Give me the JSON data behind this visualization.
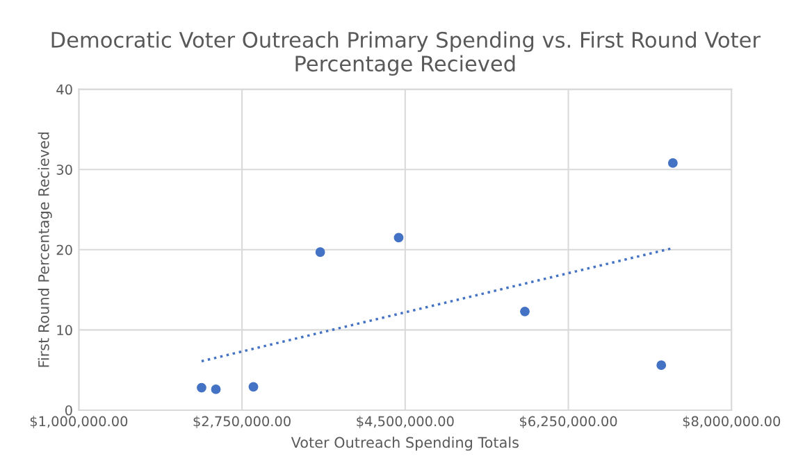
{
  "chart_data": {
    "type": "scatter",
    "title": "Democratic Voter Outreach Primary Spending vs. First Round Voter Percentage Recieved",
    "xlabel": "Voter Outreach Spending Totals",
    "ylabel": "First Round Percentage Recieved",
    "series": [
      {
        "color": "#4472c4",
        "marker": "circle",
        "x": [
          2316600,
          2470000,
          2872500,
          3589300,
          4430500,
          5783700,
          7246600,
          7371000
        ],
        "values": [
          2.8,
          2.6,
          2.9,
          19.7,
          21.5,
          12.3,
          5.6,
          30.8
        ]
      },
      {
        "type": "line",
        "color": "#4472c4",
        "line_style": "dotted",
        "marker": "none",
        "x": [
          2316600,
          7371000
        ],
        "values": [
          6.1,
          20.2
        ]
      }
    ],
    "xlim": [
      1000000,
      8000000
    ],
    "xticks": [
      {
        "value": 1000000,
        "label": "$1,000,000.00"
      },
      {
        "value": 2750000,
        "label": "$2,750,000.00"
      },
      {
        "value": 4500000,
        "label": "$4,500,000.00"
      },
      {
        "value": 6250000,
        "label": "$6,250,000.00"
      },
      {
        "value": 8000000,
        "label": "$8,000,000.00"
      }
    ],
    "ylim": [
      0,
      40
    ],
    "yticks": [
      0,
      10,
      20,
      30,
      40
    ],
    "grid": true,
    "legend": false
  }
}
